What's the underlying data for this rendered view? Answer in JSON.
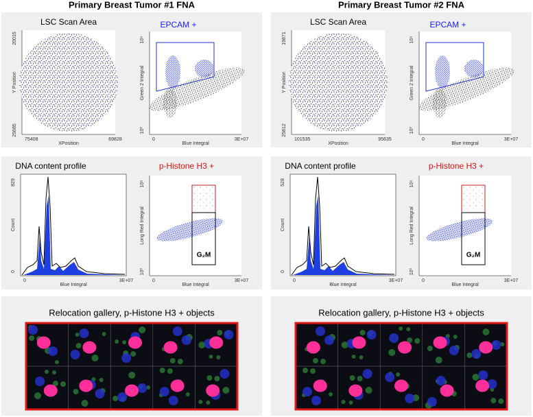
{
  "columns": [
    {
      "title": "Primary Breast Tumor #1 FNA",
      "scan": {
        "title": "LSC Scan Area",
        "y_label": "Y Position",
        "y_ticks": [
          "20015",
          "25685"
        ],
        "x_label": "XPosition",
        "x_ticks": [
          "75408",
          "69828"
        ]
      },
      "epcam": {
        "title": "EPCAM +",
        "y_label": "Green 2 Integral",
        "y_ticks": [
          "10⁶",
          "10⁰"
        ],
        "x_label": "Blue Integral",
        "x_ticks": [
          "0",
          "3E+07"
        ]
      },
      "dna": {
        "title": "DNA content profile",
        "y_label": "Count",
        "y_ticks": [
          "829",
          "0"
        ],
        "x_label": "Blue Integral",
        "x_ticks": [
          "0",
          "3E+07"
        ]
      },
      "phist": {
        "title": "p-Histone H3 +",
        "y_label": "Long Red Integral",
        "y_ticks": [
          "10⁶",
          "10⁰"
        ],
        "x_label": "Blue Integral",
        "x_ticks": [
          "0",
          "3E+07"
        ],
        "gate_label": "G₂M"
      },
      "gallery": {
        "title": "Relocation gallery, p-Histone H3 + objects"
      }
    },
    {
      "title": "Primary Breast Tumor #2 FNA",
      "scan": {
        "title": "LSC Scan Area",
        "y_label": "Y Position",
        "y_ticks": [
          "19871",
          "25812"
        ],
        "x_label": "XPosition",
        "x_ticks": [
          "101535",
          "95635"
        ]
      },
      "epcam": {
        "title": "EPCAM +",
        "y_label": "Green 2 Integral",
        "y_ticks": [
          "10⁶",
          "10⁰"
        ],
        "x_label": "Blue Integral",
        "x_ticks": [
          "0",
          "3E+07"
        ]
      },
      "dna": {
        "title": "DNA content profile",
        "y_label": "Count",
        "y_ticks": [
          "528",
          "0"
        ],
        "x_label": "Blue Integral",
        "x_ticks": [
          "0",
          "3E+07"
        ]
      },
      "phist": {
        "title": "p-Histone H3 +",
        "y_label": "Long Red Integral",
        "y_ticks": [
          "10⁶",
          "10⁰"
        ],
        "x_label": "Blue Integral",
        "x_ticks": [
          "0",
          "3E+07"
        ],
        "gate_label": "G₂M"
      },
      "gallery": {
        "title": "Relocation gallery, p-Histone H3 + objects"
      }
    }
  ]
}
